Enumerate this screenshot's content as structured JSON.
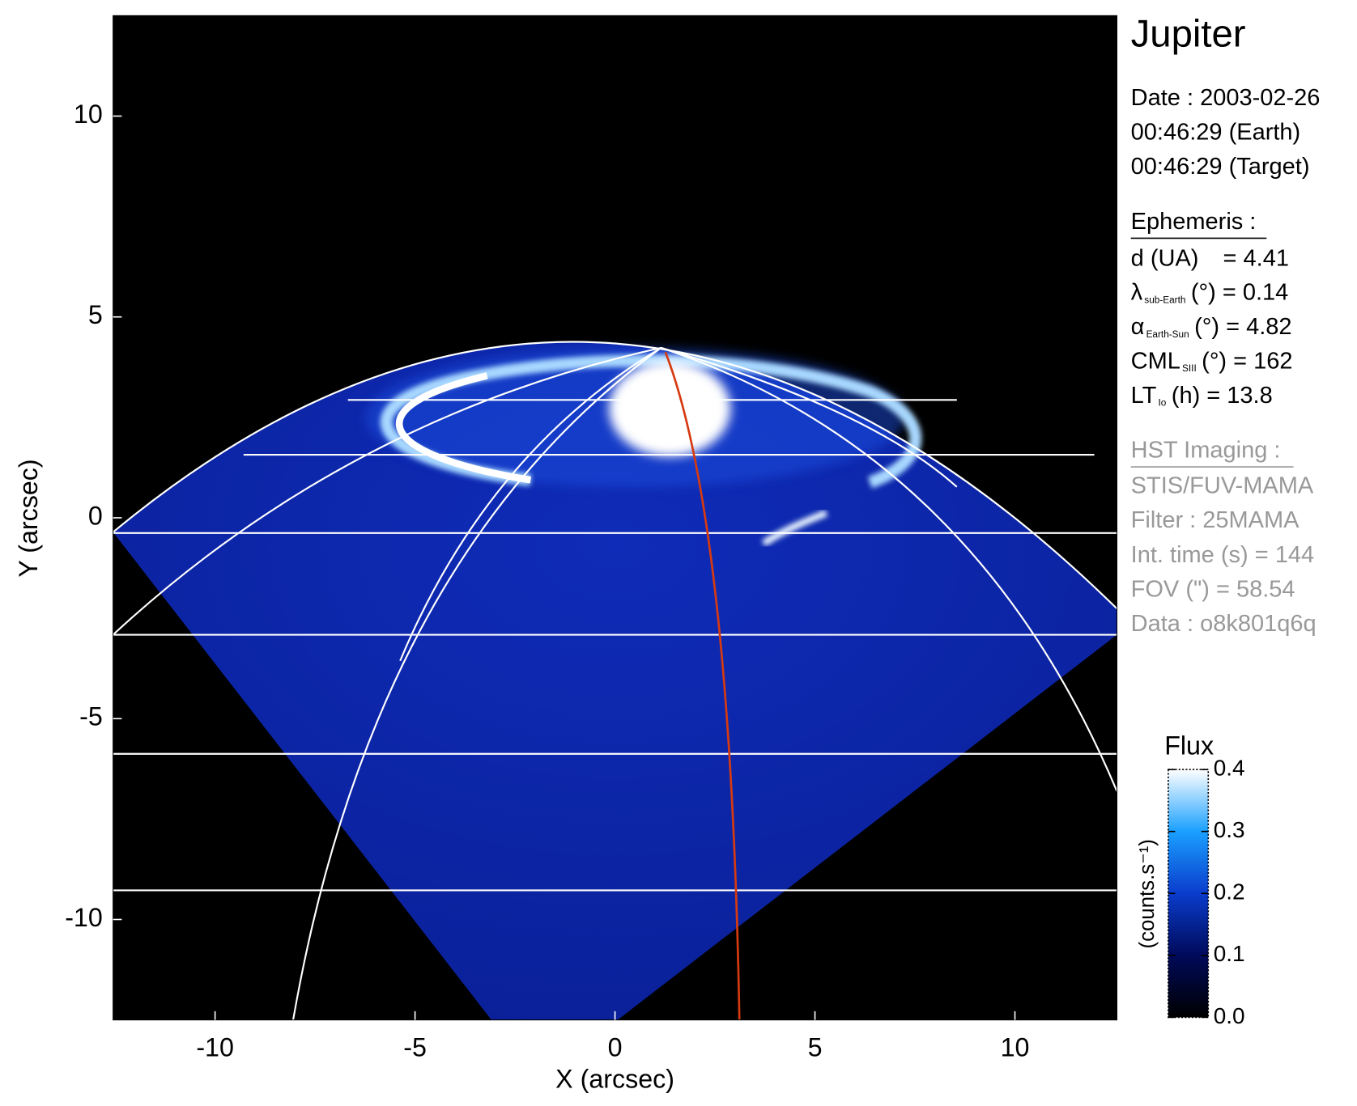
{
  "chart_data": {
    "type": "image",
    "title": "Jupiter",
    "xlabel": "X (arcsec)",
    "ylabel": "Y (arcsec)",
    "xlim": [
      -12.55,
      12.55
    ],
    "ylim": [
      -12.5,
      12.5
    ],
    "xticks": [
      -10,
      -5,
      0,
      5,
      10
    ],
    "yticks": [
      -10,
      -5,
      0,
      5,
      10
    ],
    "colorbar": {
      "title": "Flux",
      "label": "(counts.s⁻¹)",
      "lim": [
        0,
        0.4
      ],
      "ticks": [
        {
          "value": 0,
          "label": "0.0"
        },
        0.1,
        0.2,
        0.3,
        0.4
      ],
      "colors": [
        "#000000",
        "#000a5a",
        "#0a3ccc",
        "#1aa0ff",
        "#ffffff"
      ]
    }
  },
  "info": {
    "date": [
      "Date : 2003-02-26",
      "00:46:29 (Earth)",
      "00:46:29 (Target)"
    ],
    "ephemeris": {
      "heading": "Ephemeris :",
      "rows": [
        {
          "label": "d (UA)",
          "value": "= 4.41"
        },
        {
          "label": "λ",
          "sub": "sub-Earth",
          "value": "(°) = 0.14"
        },
        {
          "label": "α",
          "sub": "Earth-Sun",
          "value": "(°) = 4.82"
        },
        {
          "label": "CML",
          "sub": "SIII",
          "value": "(°) = 162"
        },
        {
          "label": "LT",
          "sub": "Io",
          "value": "(h) = 13.8"
        }
      ]
    },
    "imaging": {
      "heading": "HST Imaging :",
      "rows": [
        "STIS/FUV-MAMA",
        "Filter : 25MAMA",
        "Int. time (s) = 144",
        "FOV (\") = 58.54",
        "Data : o8k801q6q"
      ]
    }
  }
}
